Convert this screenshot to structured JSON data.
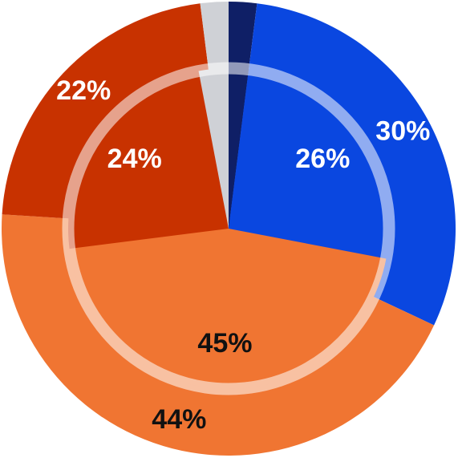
{
  "chart_data": {
    "type": "pie",
    "series": [
      {
        "values": [
          2,
          30,
          44,
          22,
          2
        ],
        "value_labels": [
          null,
          "30%",
          "44%",
          "22%",
          null
        ],
        "colors": [
          "#0f1f66",
          "#0a47e0",
          "#f07532",
          "#c83200",
          "#cfd1d6"
        ]
      },
      {
        "values": [
          2,
          26,
          45,
          24,
          3
        ],
        "value_labels": [
          null,
          "26%",
          "45%",
          "24%",
          null
        ],
        "colors": [
          "#0f1f66",
          "#0a47e0",
          "#f07532",
          "#c83200",
          "#cfd1d6"
        ]
      }
    ]
  }
}
